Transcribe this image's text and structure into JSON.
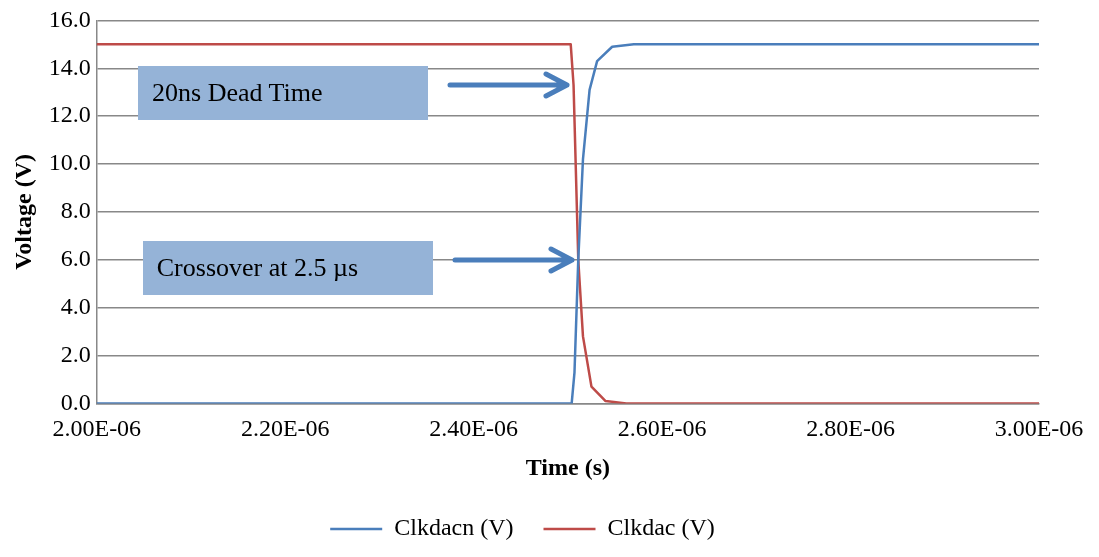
{
  "chart_data": {
    "type": "line",
    "xlabel": "Time (s)",
    "ylabel": "Voltage (V)",
    "xlim": [
      2e-06,
      3e-06
    ],
    "xticks": [
      {
        "value": 2e-06,
        "label": "2.00E-06"
      },
      {
        "value": 2.2e-06,
        "label": "2.20E-06"
      },
      {
        "value": 2.4e-06,
        "label": "2.40E-06"
      },
      {
        "value": 2.6e-06,
        "label": "2.60E-06"
      },
      {
        "value": 2.8e-06,
        "label": "2.80E-06"
      },
      {
        "value": 3e-06,
        "label": "3.00E-06"
      }
    ],
    "ylim": [
      0,
      16
    ],
    "yticks": [
      {
        "value": 0,
        "label": "0.0"
      },
      {
        "value": 2,
        "label": "2.0"
      },
      {
        "value": 4,
        "label": "4.0"
      },
      {
        "value": 6,
        "label": "6.0"
      },
      {
        "value": 8,
        "label": "8.0"
      },
      {
        "value": 10,
        "label": "10.0"
      },
      {
        "value": 12,
        "label": "12.0"
      },
      {
        "value": 14,
        "label": "14.0"
      },
      {
        "value": 16,
        "label": "16.0"
      }
    ],
    "series": [
      {
        "name": "Clkdacn (V)",
        "color": "#4a7ebb",
        "x": [
          2e-06,
          2.504e-06,
          2.507e-06,
          2.511e-06,
          2.516e-06,
          2.523e-06,
          2.531e-06,
          2.547e-06,
          2.57e-06,
          3e-06
        ],
        "values": [
          0,
          0,
          1.3,
          6.0,
          10.2,
          13.1,
          14.3,
          14.9,
          15,
          15
        ]
      },
      {
        "name": "Clkdac (V)",
        "color": "#be4b48",
        "x": [
          2e-06,
          2.503e-06,
          2.506e-06,
          2.511e-06,
          2.516e-06,
          2.525e-06,
          2.54e-06,
          2.562e-06,
          3e-06
        ],
        "values": [
          15,
          15,
          13.3,
          6.0,
          2.8,
          0.7,
          0.1,
          0,
          0
        ]
      }
    ],
    "annotations": [
      "20ns Dead Time",
      "Crossover at 2.5 µs"
    ],
    "grid": "y",
    "legend": "bottom",
    "marker": "none",
    "line_style": "solid"
  }
}
